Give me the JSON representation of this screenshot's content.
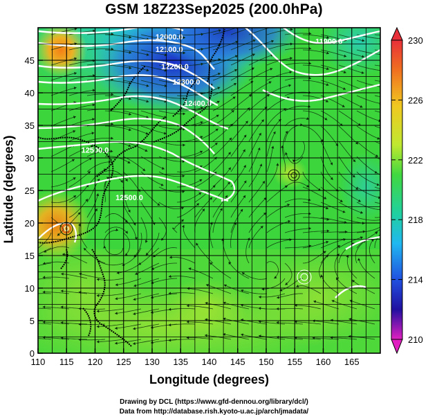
{
  "title": "GSM 18Z23Sep2025 (200.0hPa)",
  "map": {
    "xlabel": "Longitude (degrees)",
    "ylabel": "Latitude  (degrees)",
    "xlim": [
      110,
      170
    ],
    "ylim": [
      0,
      50
    ],
    "xticks": [
      110,
      115,
      120,
      125,
      130,
      135,
      140,
      145,
      150,
      155,
      160,
      165
    ],
    "yticks": [
      0,
      5,
      10,
      15,
      20,
      25,
      30,
      35,
      40,
      45
    ],
    "grid": true,
    "field": "temperature (shaded)",
    "contour_labels": [
      {
        "text": "12000.0",
        "lon": 133,
        "lat": 48.2
      },
      {
        "text": "12100.0",
        "lon": 133,
        "lat": 46.3
      },
      {
        "text": "12200.0",
        "lon": 134,
        "lat": 43.6
      },
      {
        "text": "12300.0",
        "lon": 136,
        "lat": 41.3
      },
      {
        "text": "12400.0",
        "lon": 138,
        "lat": 38.0
      },
      {
        "text": "12500.0",
        "lon": 120,
        "lat": 30.8
      },
      {
        "text": "12500.0",
        "lon": 126,
        "lat": 23.5
      },
      {
        "text": "11900.0",
        "lon": 161,
        "lat": 47.5
      }
    ]
  },
  "colorbar": {
    "min": 210,
    "max": 230,
    "ticks": [
      "230",
      "226",
      "222",
      "218",
      "214",
      "210"
    ]
  },
  "credits": [
    "Drawing by DCL (https://www.gfd-dennou.org/library/dcl/)",
    "Data from http://database.rish.kyoto-u.ac.jp/arch/jmadata/"
  ],
  "colors": {
    "cold": "#1e3fd0",
    "cool": "#22c3e8",
    "mid": "#3fd93a",
    "warm": "#c8e830",
    "hot": "#f0a020",
    "contour": "#ffffff"
  }
}
